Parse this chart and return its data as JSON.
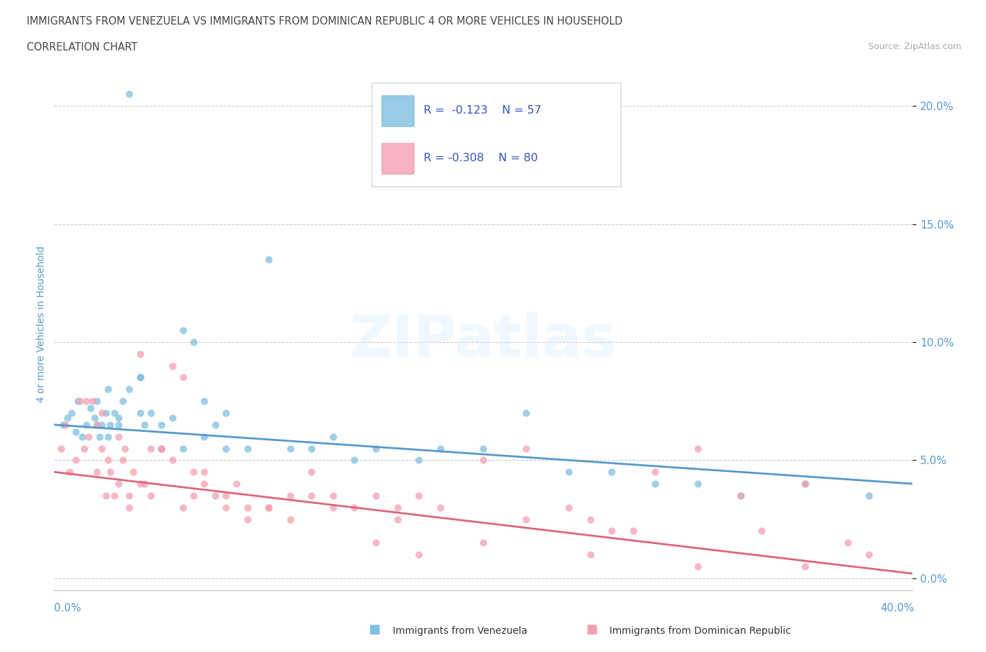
{
  "title_line1": "IMMIGRANTS FROM VENEZUELA VS IMMIGRANTS FROM DOMINICAN REPUBLIC 4 OR MORE VEHICLES IN HOUSEHOLD",
  "title_line2": "CORRELATION CHART",
  "source": "Source: ZipAtlas.com",
  "ylabel": "4 or more Vehicles in Household",
  "ytick_labels": [
    "0.0%",
    "5.0%",
    "10.0%",
    "15.0%",
    "20.0%"
  ],
  "ytick_values": [
    0.0,
    5.0,
    10.0,
    15.0,
    20.0
  ],
  "xlim": [
    0.0,
    40.0
  ],
  "ylim": [
    -0.5,
    22.0
  ],
  "color_venezuela": "#7fbfdf",
  "color_dominican": "#f4a0b0",
  "color_line_venezuela": "#5599cc",
  "color_line_dominican": "#dd6677",
  "color_yticks": "#5599cc",
  "color_ylabel": "#5599cc",
  "background_color": "#ffffff",
  "venezuela_x": [
    0.4,
    0.6,
    0.8,
    1.0,
    1.1,
    1.3,
    1.5,
    1.7,
    1.9,
    2.0,
    2.1,
    2.2,
    2.4,
    2.5,
    2.6,
    2.8,
    3.0,
    3.2,
    3.5,
    3.5,
    4.0,
    4.0,
    4.2,
    4.5,
    5.0,
    5.5,
    6.0,
    6.5,
    7.0,
    7.5,
    8.0,
    9.0,
    10.0,
    11.0,
    12.0,
    13.0,
    14.0,
    15.0,
    17.0,
    18.0,
    20.0,
    22.0,
    24.0,
    26.0,
    28.0,
    30.0,
    32.0,
    35.0,
    38.0,
    3.0,
    4.0,
    5.0,
    6.0,
    8.0,
    2.0,
    2.5,
    7.0
  ],
  "venezuela_y": [
    6.5,
    6.8,
    7.0,
    6.2,
    7.5,
    6.0,
    6.5,
    7.2,
    6.8,
    7.5,
    6.0,
    6.5,
    7.0,
    8.0,
    6.5,
    7.0,
    6.8,
    7.5,
    8.0,
    20.5,
    8.5,
    7.0,
    6.5,
    7.0,
    6.5,
    6.8,
    10.5,
    10.0,
    7.5,
    6.5,
    7.0,
    5.5,
    13.5,
    5.5,
    5.5,
    6.0,
    5.0,
    5.5,
    5.0,
    5.5,
    5.5,
    7.0,
    4.5,
    4.5,
    4.0,
    4.0,
    3.5,
    4.0,
    3.5,
    6.5,
    8.5,
    5.5,
    5.5,
    5.5,
    6.5,
    6.0,
    6.0
  ],
  "dominican_x": [
    0.3,
    0.5,
    0.7,
    1.0,
    1.2,
    1.4,
    1.6,
    1.8,
    2.0,
    2.2,
    2.4,
    2.6,
    2.8,
    3.0,
    3.2,
    3.5,
    3.7,
    4.0,
    4.2,
    4.5,
    5.0,
    5.5,
    6.0,
    6.5,
    7.0,
    7.5,
    8.0,
    9.0,
    10.0,
    11.0,
    12.0,
    13.0,
    14.0,
    15.0,
    16.0,
    17.0,
    18.0,
    20.0,
    22.0,
    24.0,
    25.0,
    26.0,
    28.0,
    30.0,
    32.0,
    35.0,
    38.0,
    1.5,
    2.0,
    2.5,
    3.0,
    3.5,
    4.0,
    5.0,
    6.0,
    7.0,
    8.0,
    9.0,
    10.0,
    11.0,
    13.0,
    15.0,
    17.0,
    20.0,
    25.0,
    30.0,
    35.0,
    4.5,
    5.5,
    6.5,
    8.5,
    12.0,
    16.0,
    22.0,
    27.0,
    33.0,
    37.0,
    2.2,
    3.3
  ],
  "dominican_y": [
    5.5,
    6.5,
    4.5,
    5.0,
    7.5,
    5.5,
    6.0,
    7.5,
    4.5,
    5.5,
    3.5,
    4.5,
    3.5,
    4.0,
    5.0,
    3.0,
    4.5,
    9.5,
    4.0,
    3.5,
    5.5,
    9.0,
    8.5,
    3.5,
    4.0,
    3.5,
    3.0,
    3.0,
    3.0,
    3.5,
    3.5,
    3.0,
    3.0,
    3.5,
    2.5,
    3.5,
    3.0,
    5.0,
    5.5,
    3.0,
    2.5,
    2.0,
    4.5,
    5.5,
    3.5,
    4.0,
    1.0,
    7.5,
    6.5,
    5.0,
    6.0,
    3.5,
    4.0,
    5.5,
    3.0,
    4.5,
    3.5,
    2.5,
    3.0,
    2.5,
    3.5,
    1.5,
    1.0,
    1.5,
    1.0,
    0.5,
    0.5,
    5.5,
    5.0,
    4.5,
    4.0,
    4.5,
    3.0,
    2.5,
    2.0,
    2.0,
    1.5,
    7.0,
    5.5
  ],
  "trendline_venezuela": [
    6.5,
    4.0
  ],
  "trendline_dominican": [
    4.5,
    0.2
  ]
}
